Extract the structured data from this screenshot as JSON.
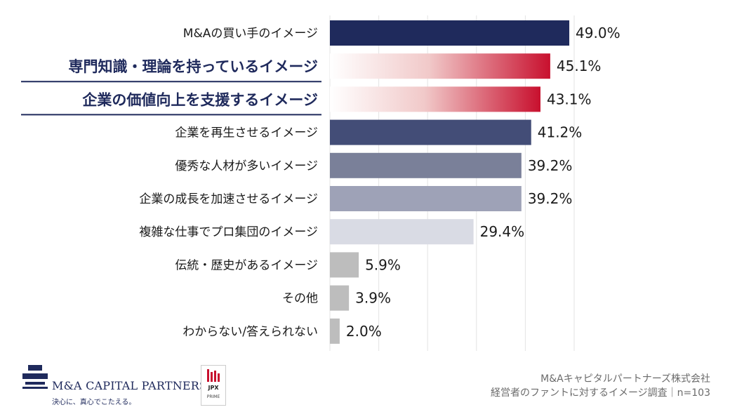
{
  "chart_data": {
    "type": "bar",
    "orientation": "horizontal",
    "categories": [
      "M&Aの買い手のイメージ",
      "専門知識・理論を持っているイメージ",
      "企業の価値向上を支援するイメージ",
      "企業を再生させるイメージ",
      "優秀な人材が多いイメージ",
      "企業の成長を加速させるイメージ",
      "複雑な仕事でプロ集団のイメージ",
      "伝統・歴史があるイメージ",
      "その他",
      "わからない/答えられない"
    ],
    "values": [
      49.0,
      45.1,
      43.1,
      41.2,
      39.2,
      39.2,
      29.4,
      5.9,
      3.9,
      2.0
    ],
    "value_labels": [
      "49.0%",
      "45.1%",
      "43.1%",
      "41.2%",
      "39.2%",
      "39.2%",
      "29.4%",
      "5.9%",
      "3.9%",
      "2.0%"
    ],
    "highlighted": [
      1,
      2
    ],
    "bar_colors": [
      "#1f2a5c",
      "gradient-red",
      "gradient-red",
      "#434d77",
      "#7a8099",
      "#9ea2b7",
      "#d9dbe4",
      "#bdbdbd",
      "#bdbdbd",
      "#bdbdbd"
    ],
    "highlight_color": "#c8102e",
    "highlight_label_color": "#1f2a5c",
    "xlim": [
      0,
      50
    ],
    "grid": true,
    "legend": "none"
  },
  "footer": {
    "logo_name": "M&A CAPITAL PARTNERS",
    "logo_tagline": "決心に、真心でこたえる。",
    "jpx_label": "JPX",
    "jpx_sub": "PRIME",
    "source_line1": "M&Aキャピタルパートナーズ株式会社",
    "source_line2": "経営者のファントに対するイメージ調査｜n=103"
  }
}
